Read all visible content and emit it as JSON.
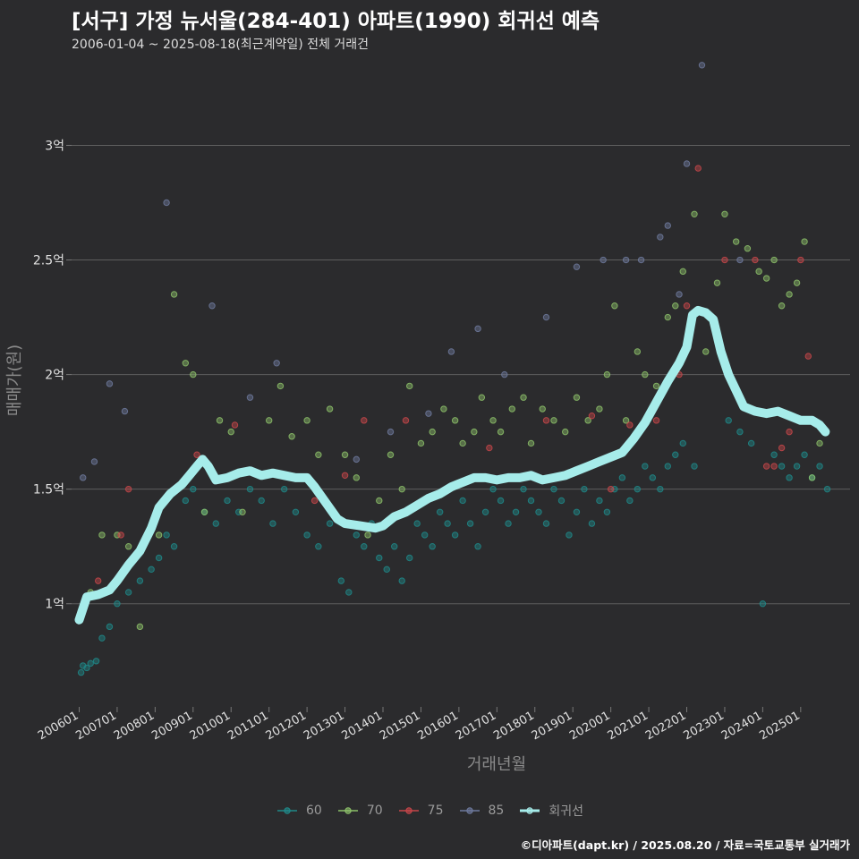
{
  "title": "[서구] 가정 뉴서울(284-401) 아파트(1990) 회귀선 예측",
  "subtitle": "2006-01-04 ~ 2025-08-18(최근계약일) 전체 거래건",
  "credit": "©디아파트(dapt.kr) / 2025.08.20 / 자료=국토교통부 실거래가",
  "colors": {
    "background": "#2b2b2d",
    "grid": "#5e5e5e",
    "s60": "#1f8a8a",
    "s70": "#8dc26a",
    "s75": "#c8464a",
    "s85": "#6e7a9e",
    "trend": "#a6ecea"
  },
  "chart_data": {
    "type": "scatter",
    "xlabel": "거래년월",
    "ylabel": "매매가(원)",
    "xlim": [
      2005.8,
      2026.3
    ],
    "ylim": [
      0.55,
      3.4
    ],
    "yticks": [
      {
        "value": 1.0,
        "label": "1억"
      },
      {
        "value": 1.5,
        "label": "1.5억"
      },
      {
        "value": 2.0,
        "label": "2억"
      },
      {
        "value": 2.5,
        "label": "2.5억"
      },
      {
        "value": 3.0,
        "label": "3억"
      }
    ],
    "xticks": [
      {
        "value": 2006,
        "label": "200601"
      },
      {
        "value": 2007,
        "label": "200701"
      },
      {
        "value": 2008,
        "label": "200801"
      },
      {
        "value": 2009,
        "label": "200901"
      },
      {
        "value": 2010,
        "label": "201001"
      },
      {
        "value": 2011,
        "label": "201101"
      },
      {
        "value": 2012,
        "label": "201201"
      },
      {
        "value": 2013,
        "label": "201301"
      },
      {
        "value": 2014,
        "label": "201401"
      },
      {
        "value": 2015,
        "label": "201501"
      },
      {
        "value": 2016,
        "label": "201601"
      },
      {
        "value": 2017,
        "label": "201701"
      },
      {
        "value": 2018,
        "label": "201801"
      },
      {
        "value": 2019,
        "label": "201901"
      },
      {
        "value": 2020,
        "label": "202001"
      },
      {
        "value": 2021,
        "label": "202101"
      },
      {
        "value": 2022,
        "label": "202201"
      },
      {
        "value": 2023,
        "label": "202301"
      },
      {
        "value": 2024,
        "label": "202401"
      },
      {
        "value": 2025,
        "label": "202501"
      }
    ],
    "legend": [
      {
        "key": "60",
        "label": "60",
        "color_key": "s60"
      },
      {
        "key": "70",
        "label": "70",
        "color_key": "s70"
      },
      {
        "key": "75",
        "label": "75",
        "color_key": "s75"
      },
      {
        "key": "85",
        "label": "85",
        "color_key": "s85"
      },
      {
        "key": "trend",
        "label": "회귀선",
        "color_key": "trend"
      }
    ],
    "series": [
      {
        "name": "60",
        "points": [
          [
            2006.05,
            0.7
          ],
          [
            2006.1,
            0.73
          ],
          [
            2006.2,
            0.72
          ],
          [
            2006.3,
            0.74
          ],
          [
            2006.45,
            0.75
          ],
          [
            2006.6,
            0.85
          ],
          [
            2006.8,
            0.9
          ],
          [
            2007.0,
            1.0
          ],
          [
            2007.3,
            1.05
          ],
          [
            2007.6,
            1.1
          ],
          [
            2007.9,
            1.15
          ],
          [
            2008.1,
            1.2
          ],
          [
            2008.3,
            1.3
          ],
          [
            2008.5,
            1.25
          ],
          [
            2008.8,
            1.45
          ],
          [
            2009.0,
            1.5
          ],
          [
            2009.3,
            1.4
          ],
          [
            2009.6,
            1.35
          ],
          [
            2009.9,
            1.45
          ],
          [
            2010.2,
            1.4
          ],
          [
            2010.5,
            1.5
          ],
          [
            2010.8,
            1.45
          ],
          [
            2011.1,
            1.35
          ],
          [
            2011.4,
            1.5
          ],
          [
            2011.7,
            1.4
          ],
          [
            2012.0,
            1.3
          ],
          [
            2012.3,
            1.25
          ],
          [
            2012.6,
            1.35
          ],
          [
            2012.9,
            1.1
          ],
          [
            2013.1,
            1.05
          ],
          [
            2013.3,
            1.3
          ],
          [
            2013.5,
            1.25
          ],
          [
            2013.7,
            1.35
          ],
          [
            2013.9,
            1.2
          ],
          [
            2014.1,
            1.15
          ],
          [
            2014.3,
            1.25
          ],
          [
            2014.5,
            1.1
          ],
          [
            2014.7,
            1.2
          ],
          [
            2014.9,
            1.35
          ],
          [
            2015.1,
            1.3
          ],
          [
            2015.3,
            1.25
          ],
          [
            2015.5,
            1.4
          ],
          [
            2015.7,
            1.35
          ],
          [
            2015.9,
            1.3
          ],
          [
            2016.1,
            1.45
          ],
          [
            2016.3,
            1.35
          ],
          [
            2016.5,
            1.25
          ],
          [
            2016.7,
            1.4
          ],
          [
            2016.9,
            1.5
          ],
          [
            2017.1,
            1.45
          ],
          [
            2017.3,
            1.35
          ],
          [
            2017.5,
            1.4
          ],
          [
            2017.7,
            1.5
          ],
          [
            2017.9,
            1.45
          ],
          [
            2018.1,
            1.4
          ],
          [
            2018.3,
            1.35
          ],
          [
            2018.5,
            1.5
          ],
          [
            2018.7,
            1.45
          ],
          [
            2018.9,
            1.3
          ],
          [
            2019.1,
            1.4
          ],
          [
            2019.3,
            1.5
          ],
          [
            2019.5,
            1.35
          ],
          [
            2019.7,
            1.45
          ],
          [
            2019.9,
            1.4
          ],
          [
            2020.1,
            1.5
          ],
          [
            2020.3,
            1.55
          ],
          [
            2020.5,
            1.45
          ],
          [
            2020.7,
            1.5
          ],
          [
            2020.9,
            1.6
          ],
          [
            2021.1,
            1.55
          ],
          [
            2021.3,
            1.5
          ],
          [
            2021.5,
            1.6
          ],
          [
            2021.7,
            1.65
          ],
          [
            2021.9,
            1.7
          ],
          [
            2022.2,
            1.6
          ],
          [
            2023.1,
            1.8
          ],
          [
            2023.4,
            1.75
          ],
          [
            2023.7,
            1.7
          ],
          [
            2024.0,
            1.0
          ],
          [
            2024.3,
            1.65
          ],
          [
            2024.5,
            1.6
          ],
          [
            2024.7,
            1.55
          ],
          [
            2024.9,
            1.6
          ],
          [
            2025.1,
            1.65
          ],
          [
            2025.3,
            1.55
          ],
          [
            2025.5,
            1.6
          ],
          [
            2025.7,
            1.5
          ]
        ]
      },
      {
        "name": "70",
        "points": [
          [
            2006.3,
            1.05
          ],
          [
            2006.6,
            1.3
          ],
          [
            2007.0,
            1.3
          ],
          [
            2007.3,
            1.25
          ],
          [
            2007.6,
            0.9
          ],
          [
            2008.1,
            1.3
          ],
          [
            2008.5,
            2.35
          ],
          [
            2008.8,
            2.05
          ],
          [
            2009.0,
            2.0
          ],
          [
            2009.3,
            1.4
          ],
          [
            2009.7,
            1.8
          ],
          [
            2010.0,
            1.75
          ],
          [
            2010.3,
            1.4
          ],
          [
            2011.0,
            1.8
          ],
          [
            2011.3,
            1.95
          ],
          [
            2011.6,
            1.73
          ],
          [
            2012.0,
            1.8
          ],
          [
            2012.3,
            1.65
          ],
          [
            2012.6,
            1.85
          ],
          [
            2013.0,
            1.65
          ],
          [
            2013.3,
            1.55
          ],
          [
            2013.6,
            1.3
          ],
          [
            2013.9,
            1.45
          ],
          [
            2014.2,
            1.65
          ],
          [
            2014.5,
            1.5
          ],
          [
            2014.7,
            1.95
          ],
          [
            2015.0,
            1.7
          ],
          [
            2015.3,
            1.75
          ],
          [
            2015.6,
            1.85
          ],
          [
            2015.9,
            1.8
          ],
          [
            2016.1,
            1.7
          ],
          [
            2016.4,
            1.75
          ],
          [
            2016.6,
            1.9
          ],
          [
            2016.9,
            1.8
          ],
          [
            2017.1,
            1.75
          ],
          [
            2017.4,
            1.85
          ],
          [
            2017.7,
            1.9
          ],
          [
            2017.9,
            1.7
          ],
          [
            2018.2,
            1.85
          ],
          [
            2018.5,
            1.8
          ],
          [
            2018.8,
            1.75
          ],
          [
            2019.1,
            1.9
          ],
          [
            2019.4,
            1.8
          ],
          [
            2019.7,
            1.85
          ],
          [
            2019.9,
            2.0
          ],
          [
            2020.1,
            2.3
          ],
          [
            2020.4,
            1.8
          ],
          [
            2020.7,
            2.1
          ],
          [
            2020.9,
            2.0
          ],
          [
            2021.2,
            1.95
          ],
          [
            2021.5,
            2.25
          ],
          [
            2021.7,
            2.3
          ],
          [
            2021.9,
            2.45
          ],
          [
            2022.2,
            2.7
          ],
          [
            2022.5,
            2.1
          ],
          [
            2022.8,
            2.4
          ],
          [
            2023.0,
            2.7
          ],
          [
            2023.3,
            2.58
          ],
          [
            2023.6,
            2.55
          ],
          [
            2023.9,
            2.45
          ],
          [
            2024.1,
            2.42
          ],
          [
            2024.3,
            2.5
          ],
          [
            2024.5,
            2.3
          ],
          [
            2024.7,
            2.35
          ],
          [
            2024.9,
            2.4
          ],
          [
            2025.1,
            2.58
          ],
          [
            2025.3,
            1.55
          ],
          [
            2025.5,
            1.7
          ]
        ]
      },
      {
        "name": "75",
        "points": [
          [
            2006.5,
            1.1
          ],
          [
            2007.1,
            1.3
          ],
          [
            2007.3,
            1.5
          ],
          [
            2009.1,
            1.65
          ],
          [
            2010.1,
            1.78
          ],
          [
            2012.2,
            1.45
          ],
          [
            2013.0,
            1.56
          ],
          [
            2013.5,
            1.8
          ],
          [
            2014.6,
            1.8
          ],
          [
            2016.8,
            1.68
          ],
          [
            2018.3,
            1.8
          ],
          [
            2019.5,
            1.82
          ],
          [
            2020.0,
            1.5
          ],
          [
            2020.5,
            1.78
          ],
          [
            2021.2,
            1.8
          ],
          [
            2021.8,
            2.0
          ],
          [
            2022.0,
            2.3
          ],
          [
            2022.3,
            2.9
          ],
          [
            2023.0,
            2.5
          ],
          [
            2023.8,
            2.5
          ],
          [
            2024.1,
            1.6
          ],
          [
            2024.3,
            1.6
          ],
          [
            2024.5,
            1.68
          ],
          [
            2024.7,
            1.75
          ],
          [
            2025.0,
            2.5
          ],
          [
            2025.2,
            2.08
          ]
        ]
      },
      {
        "name": "85",
        "points": [
          [
            2006.1,
            1.55
          ],
          [
            2006.4,
            1.62
          ],
          [
            2006.8,
            1.96
          ],
          [
            2007.2,
            1.84
          ],
          [
            2008.3,
            2.75
          ],
          [
            2009.5,
            2.3
          ],
          [
            2010.5,
            1.9
          ],
          [
            2011.2,
            2.05
          ],
          [
            2013.3,
            1.63
          ],
          [
            2014.2,
            1.75
          ],
          [
            2015.2,
            1.83
          ],
          [
            2015.8,
            2.1
          ],
          [
            2016.5,
            2.2
          ],
          [
            2017.2,
            2.0
          ],
          [
            2018.3,
            2.25
          ],
          [
            2019.1,
            2.47
          ],
          [
            2019.8,
            2.5
          ],
          [
            2020.4,
            2.5
          ],
          [
            2020.8,
            2.5
          ],
          [
            2021.3,
            2.6
          ],
          [
            2021.5,
            2.65
          ],
          [
            2021.8,
            2.35
          ],
          [
            2022.0,
            2.92
          ],
          [
            2022.4,
            3.35
          ],
          [
            2023.4,
            2.5
          ]
        ]
      }
    ],
    "trend": {
      "name": "회귀선",
      "points": [
        [
          2006.0,
          0.93
        ],
        [
          2006.2,
          1.03
        ],
        [
          2006.5,
          1.04
        ],
        [
          2006.8,
          1.06
        ],
        [
          2007.0,
          1.1
        ],
        [
          2007.3,
          1.17
        ],
        [
          2007.6,
          1.23
        ],
        [
          2007.9,
          1.33
        ],
        [
          2008.1,
          1.42
        ],
        [
          2008.4,
          1.48
        ],
        [
          2008.7,
          1.52
        ],
        [
          2008.9,
          1.56
        ],
        [
          2009.1,
          1.6
        ],
        [
          2009.25,
          1.63
        ],
        [
          2009.4,
          1.6
        ],
        [
          2009.6,
          1.54
        ],
        [
          2009.9,
          1.55
        ],
        [
          2010.2,
          1.57
        ],
        [
          2010.5,
          1.58
        ],
        [
          2010.8,
          1.56
        ],
        [
          2011.1,
          1.57
        ],
        [
          2011.4,
          1.56
        ],
        [
          2011.7,
          1.55
        ],
        [
          2012.0,
          1.55
        ],
        [
          2012.2,
          1.51
        ],
        [
          2012.5,
          1.44
        ],
        [
          2012.8,
          1.37
        ],
        [
          2013.0,
          1.35
        ],
        [
          2013.4,
          1.34
        ],
        [
          2013.8,
          1.33
        ],
        [
          2014.0,
          1.34
        ],
        [
          2014.3,
          1.38
        ],
        [
          2014.6,
          1.4
        ],
        [
          2014.9,
          1.43
        ],
        [
          2015.2,
          1.46
        ],
        [
          2015.5,
          1.48
        ],
        [
          2015.8,
          1.51
        ],
        [
          2016.1,
          1.53
        ],
        [
          2016.4,
          1.55
        ],
        [
          2016.7,
          1.55
        ],
        [
          2017.0,
          1.54
        ],
        [
          2017.3,
          1.55
        ],
        [
          2017.6,
          1.55
        ],
        [
          2017.9,
          1.56
        ],
        [
          2018.2,
          1.54
        ],
        [
          2018.5,
          1.55
        ],
        [
          2018.8,
          1.56
        ],
        [
          2019.1,
          1.58
        ],
        [
          2019.4,
          1.6
        ],
        [
          2019.7,
          1.62
        ],
        [
          2020.0,
          1.64
        ],
        [
          2020.3,
          1.66
        ],
        [
          2020.6,
          1.72
        ],
        [
          2020.9,
          1.79
        ],
        [
          2021.2,
          1.88
        ],
        [
          2021.5,
          1.97
        ],
        [
          2021.8,
          2.05
        ],
        [
          2022.0,
          2.12
        ],
        [
          2022.15,
          2.26
        ],
        [
          2022.3,
          2.28
        ],
        [
          2022.5,
          2.27
        ],
        [
          2022.7,
          2.24
        ],
        [
          2022.9,
          2.1
        ],
        [
          2023.1,
          2.0
        ],
        [
          2023.3,
          1.93
        ],
        [
          2023.5,
          1.86
        ],
        [
          2023.8,
          1.84
        ],
        [
          2024.1,
          1.83
        ],
        [
          2024.4,
          1.84
        ],
        [
          2024.7,
          1.82
        ],
        [
          2025.0,
          1.8
        ],
        [
          2025.3,
          1.8
        ],
        [
          2025.5,
          1.78
        ],
        [
          2025.65,
          1.75
        ]
      ]
    }
  }
}
